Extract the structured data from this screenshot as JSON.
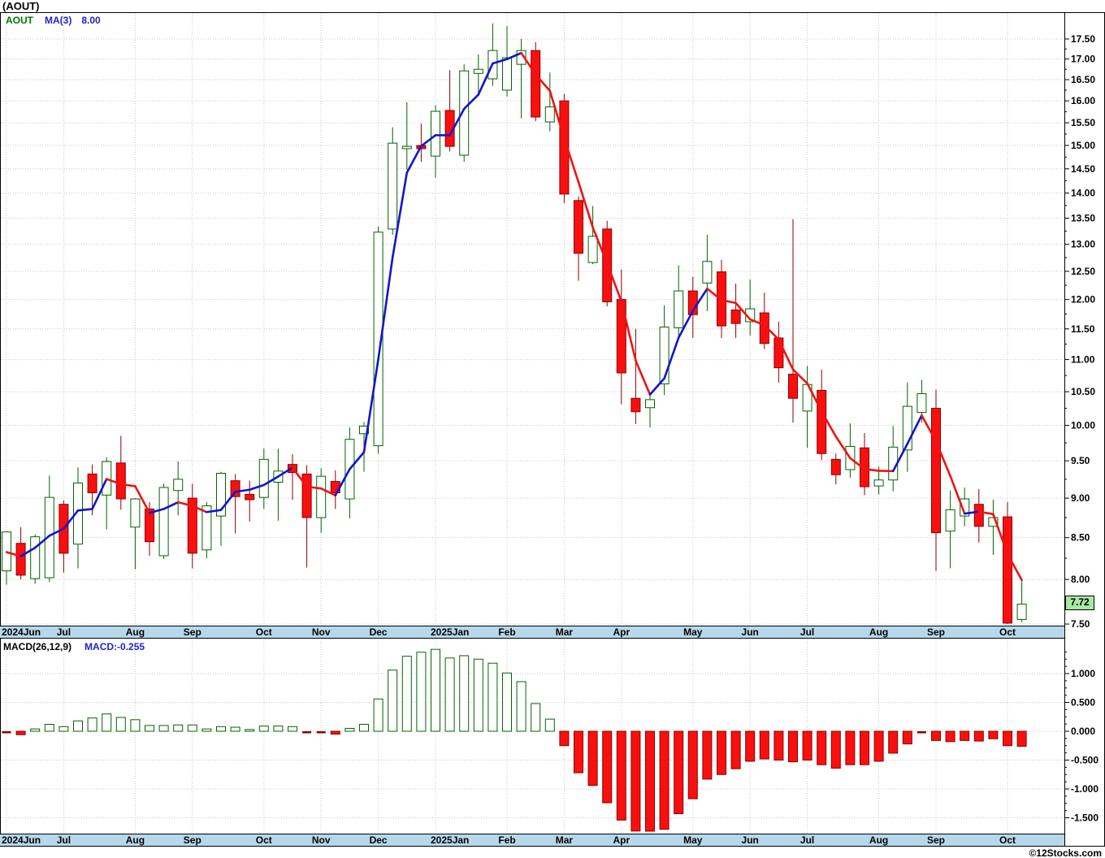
{
  "title": "(AOUT)",
  "legend": {
    "symbol": "AOUT",
    "ma_label": "MA(3)",
    "ma_value": "8.00"
  },
  "macd_panel": {
    "label": "MACD(26,12,9)",
    "value": "MACD:-0.255"
  },
  "last_price_tag": "7.72",
  "copyright": "©12Stocks.com",
  "colors": {
    "up_candle_border": "#006400",
    "up_candle_fill": "#ffffff",
    "down_candle_fill": "#fa0f0f",
    "down_candle_border": "#8b0000",
    "ma_up": "#1414cc",
    "ma_down": "#ee1414",
    "grid": "#c9c9c9",
    "axis_band": "#b6d8ea",
    "tag_bg": "#a9e9a4",
    "legend_symbol": "#007700",
    "legend_blue": "#2222cc"
  },
  "chart_data": [
    {
      "type": "candlestick",
      "title": "AOUT weekly candlesticks with MA(3) overlay",
      "x_axis": "weeks, Jun 2024 - Oct 2025",
      "y_axis": "price USD, logarithmic scale",
      "ylim": [
        7.5,
        17.5
      ],
      "grid": "dotted, 0.50 price steps and month boundaries",
      "legend_position": "top-left",
      "price_ticks": [
        7.5,
        8.0,
        8.5,
        9.0,
        9.5,
        10.0,
        10.5,
        11.0,
        11.5,
        12.0,
        12.5,
        13.0,
        13.5,
        14.0,
        14.5,
        15.0,
        15.5,
        16.0,
        16.5,
        17.0,
        17.5
      ],
      "months": [
        {
          "label": "2024Jun",
          "week": 1
        },
        {
          "label": "Jul",
          "week": 5
        },
        {
          "label": "Aug",
          "week": 10
        },
        {
          "label": "Sep",
          "week": 14
        },
        {
          "label": "Oct",
          "week": 19
        },
        {
          "label": "Nov",
          "week": 23
        },
        {
          "label": "Dec",
          "week": 27
        },
        {
          "label": "2025Jan",
          "week": 31
        },
        {
          "label": "Feb",
          "week": 36
        },
        {
          "label": "Mar",
          "week": 40
        },
        {
          "label": "Apr",
          "week": 44
        },
        {
          "label": "May",
          "week": 49
        },
        {
          "label": "Jun",
          "week": 53
        },
        {
          "label": "Jul",
          "week": 57
        },
        {
          "label": "Aug",
          "week": 62
        },
        {
          "label": "Sep",
          "week": 66
        },
        {
          "label": "Oct",
          "week": 71
        }
      ],
      "ma_note": "MA(3) of weekly close; drawn blue when rising, red when falling; current value 8.00",
      "ohlc": [
        [
          8.1,
          8.58,
          7.94,
          8.57
        ],
        [
          8.43,
          8.63,
          8.0,
          8.05
        ],
        [
          8.01,
          8.54,
          7.95,
          8.51
        ],
        [
          8.02,
          9.3,
          7.97,
          9.01
        ],
        [
          8.92,
          8.97,
          8.08,
          8.31
        ],
        [
          8.42,
          9.41,
          8.13,
          9.2
        ],
        [
          9.32,
          9.45,
          8.78,
          9.07
        ],
        [
          9.04,
          9.55,
          8.6,
          9.49
        ],
        [
          9.47,
          9.85,
          8.85,
          8.99
        ],
        [
          8.63,
          9.0,
          8.12,
          8.99
        ],
        [
          8.86,
          8.95,
          8.28,
          8.45
        ],
        [
          8.28,
          9.19,
          8.24,
          9.14
        ],
        [
          9.1,
          9.49,
          8.78,
          9.25
        ],
        [
          9.0,
          9.19,
          8.13,
          8.31
        ],
        [
          8.35,
          8.95,
          8.25,
          8.9
        ],
        [
          8.77,
          9.35,
          8.4,
          9.33
        ],
        [
          9.23,
          9.32,
          8.55,
          9.02
        ],
        [
          9.05,
          9.23,
          8.7,
          8.98
        ],
        [
          9.01,
          9.67,
          8.86,
          9.52
        ],
        [
          9.21,
          9.67,
          8.71,
          9.36
        ],
        [
          9.45,
          9.59,
          8.98,
          9.34
        ],
        [
          9.32,
          9.44,
          8.14,
          8.75
        ],
        [
          8.75,
          9.4,
          8.56,
          9.29
        ],
        [
          9.22,
          9.37,
          8.86,
          9.07
        ],
        [
          8.99,
          9.97,
          8.74,
          9.8
        ],
        [
          9.88,
          10.05,
          9.35,
          9.99
        ],
        [
          9.71,
          13.34,
          9.6,
          13.23
        ],
        [
          13.29,
          15.4,
          13.18,
          15.05
        ],
        [
          14.93,
          15.97,
          14.48,
          14.98
        ],
        [
          15.0,
          15.48,
          14.65,
          14.93
        ],
        [
          14.77,
          15.9,
          14.31,
          15.76
        ],
        [
          15.78,
          16.73,
          14.87,
          14.98
        ],
        [
          14.79,
          16.87,
          14.65,
          16.71
        ],
        [
          16.65,
          17.11,
          16.15,
          16.75
        ],
        [
          16.52,
          17.9,
          16.35,
          17.21
        ],
        [
          16.25,
          17.83,
          16.1,
          17.03
        ],
        [
          16.87,
          17.5,
          15.6,
          17.21
        ],
        [
          17.21,
          17.42,
          15.54,
          15.63
        ],
        [
          15.52,
          16.67,
          15.31,
          15.86
        ],
        [
          16.0,
          16.16,
          13.8,
          13.98
        ],
        [
          13.85,
          13.93,
          12.33,
          12.83
        ],
        [
          12.66,
          13.74,
          12.63,
          13.15
        ],
        [
          13.29,
          13.45,
          11.88,
          11.96
        ],
        [
          12.0,
          12.53,
          10.31,
          10.79
        ],
        [
          10.4,
          11.5,
          10.02,
          10.2
        ],
        [
          10.26,
          10.45,
          9.97,
          10.38
        ],
        [
          10.62,
          11.9,
          10.45,
          11.53
        ],
        [
          11.52,
          12.61,
          11.35,
          12.15
        ],
        [
          12.15,
          12.4,
          11.35,
          11.74
        ],
        [
          12.29,
          13.18,
          11.8,
          12.68
        ],
        [
          12.49,
          12.71,
          11.35,
          11.55
        ],
        [
          11.82,
          12.28,
          11.35,
          11.59
        ],
        [
          11.62,
          12.35,
          11.39,
          11.84
        ],
        [
          11.77,
          12.12,
          11.17,
          11.26
        ],
        [
          11.35,
          11.62,
          10.64,
          10.87
        ],
        [
          10.77,
          13.48,
          10.04,
          10.4
        ],
        [
          10.21,
          10.9,
          9.68,
          10.61
        ],
        [
          10.52,
          10.84,
          9.51,
          9.6
        ],
        [
          9.52,
          9.6,
          9.18,
          9.31
        ],
        [
          9.38,
          10.03,
          9.27,
          9.7
        ],
        [
          9.68,
          9.89,
          9.04,
          9.15
        ],
        [
          9.16,
          9.42,
          9.05,
          9.24
        ],
        [
          9.24,
          9.99,
          9.09,
          9.69
        ],
        [
          9.65,
          10.64,
          9.35,
          10.28
        ],
        [
          10.19,
          10.68,
          10.04,
          10.47
        ],
        [
          10.25,
          10.53,
          8.1,
          8.56
        ],
        [
          8.58,
          9.1,
          8.13,
          8.85
        ],
        [
          8.77,
          9.14,
          8.64,
          8.99
        ],
        [
          8.92,
          9.12,
          8.44,
          8.64
        ],
        [
          8.64,
          8.98,
          8.29,
          8.75
        ],
        [
          8.76,
          8.95,
          7.5,
          7.51
        ],
        [
          7.55,
          8.0,
          7.52,
          7.72
        ]
      ]
    },
    {
      "type": "bar",
      "title": "MACD(26,12,9) histogram",
      "current_value": -0.255,
      "ylim": [
        -1.79,
        1.42
      ],
      "ticks": [
        1.0,
        0.5,
        0.0,
        -0.5,
        -1.0,
        -1.5
      ],
      "positive_style": "hollow green bars",
      "negative_style": "solid red bars",
      "values": [
        -0.02,
        -0.06,
        0.04,
        0.12,
        0.08,
        0.18,
        0.23,
        0.3,
        0.24,
        0.2,
        0.1,
        0.1,
        0.11,
        0.11,
        0.04,
        0.08,
        0.07,
        0.03,
        0.09,
        0.09,
        0.08,
        -0.01,
        -0.01,
        -0.05,
        0.05,
        0.12,
        0.56,
        1.06,
        1.3,
        1.37,
        1.42,
        1.27,
        1.31,
        1.25,
        1.18,
        1.01,
        0.86,
        0.48,
        0.21,
        -0.25,
        -0.72,
        -0.94,
        -1.24,
        -1.54,
        -1.73,
        -1.79,
        -1.7,
        -1.43,
        -1.17,
        -0.83,
        -0.75,
        -0.65,
        -0.52,
        -0.48,
        -0.5,
        -0.53,
        -0.5,
        -0.58,
        -0.64,
        -0.58,
        -0.58,
        -0.52,
        -0.38,
        -0.22,
        -0.02,
        -0.16,
        -0.18,
        -0.16,
        -0.17,
        -0.13,
        -0.25,
        -0.26
      ]
    }
  ]
}
